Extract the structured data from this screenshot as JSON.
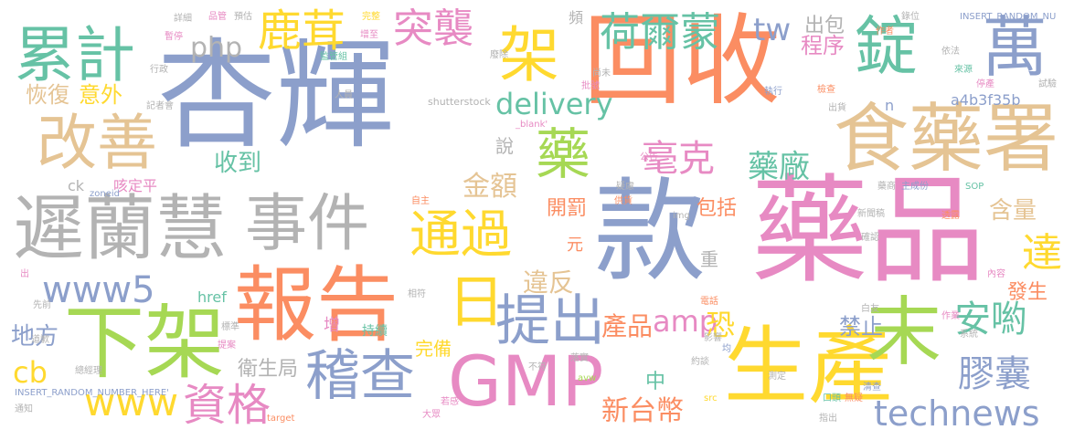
{
  "words": {
    "xinghui": "杏輝",
    "huishou": "回收",
    "kuan": "款",
    "yaopin": "藥品",
    "baogao": "報告",
    "gmp": "GMP",
    "shengchan": "生產",
    "xiajia": "下架",
    "chilanhui": "遲蘭慧",
    "shijian": "事件",
    "shiyaoshu": "食藥署",
    "leiji": "累計",
    "gaishan": "改善",
    "jia": "架",
    "ding": "錠",
    "wan": "萬",
    "mo": "末",
    "lurong": "鹿茸",
    "tuxi": "突襲",
    "heermeng": "荷爾蒙",
    "tongguo": "通過",
    "yao": "藥",
    "ri": "日",
    "tichu": "提出",
    "jicha": "稽查",
    "zige": "資格",
    "www5": "www5",
    "www": "www",
    "technews": "technews",
    "delivery": "delivery",
    "php": "php",
    "tw": "tw",
    "amp": "amp",
    "cb": "cb",
    "haoke": "毫克",
    "yaochang": "藥廠",
    "anwang": "安喲",
    "jiaonang": "膠囊",
    "da": "達",
    "fasheng": "發生",
    "hanliang": "含量",
    "jine": "金額",
    "shoudao": "收到",
    "yiwai": "意外",
    "huifu": "恢復",
    "weifan": "違反",
    "kaifa": "開罰",
    "kong": "恐",
    "chanpin": "產品",
    "jinzhi": "禁止",
    "weishengju": "衛生局",
    "xintaibi": "新台幣",
    "zhong": "中",
    "difang": "地方",
    "chubao": "出包",
    "chengxu": "程序",
    "shuo": "說",
    "yuan": "元",
    "baokuo": "包括",
    "zhong2": "重",
    "wanbei": "完備",
    "zeng": "增",
    "chixu": "持續",
    "hexi": "咳定平",
    "href": "href",
    "ck": "ck",
    "a4b": "a4b3f35b",
    "n": "n",
    "shutterstock": "shutterstock",
    "blank": "_blank'",
    "zoneid": "zoneid",
    "img": "img",
    "target": "target",
    "src": "src",
    "sop": "SOP",
    "avw": "avw",
    "insert1": "INSERT_RANDOM_NU",
    "insert2": "INSERT_RANDOM_NUMBER_HERE'",
    "pin": "頻",
    "renyuan": "人員",
    "jizhehui": "記者會",
    "jianguanzu": "監管組",
    "xiangxi": "詳細",
    "yugu": "預估",
    "zanting": "暫停",
    "xingzheng": "行政",
    "pinguan": "品管",
    "wanzheng": "完整",
    "zengzhi": "增至",
    "feichu": "廢除",
    "picihao": "批號",
    "shangwei": "尚未",
    "zhixing": "執行",
    "laiyuan": "來源",
    "tingchan": "停產",
    "jiancha": "檢查",
    "ceshi": "試驗",
    "chuhuo": "出貨",
    "yifa": "依法",
    "zuozhe": "作者",
    "luwei": "錄位",
    "gonggao": "公告",
    "yiyu": "疑慮",
    "zhuchengfen": "主成份",
    "xinwengao": "新聞稿",
    "queren": "確認",
    "touxu": "透露",
    "neirong": "內容",
    "yaoshang": "藥商",
    "gongying": "供貨",
    "zizhu": "自主",
    "dianhua": "電話",
    "baiyou": "白友",
    "zuoye": "作業",
    "xitong": "系統",
    "yingxiang": "影響",
    "jun": "均",
    "luoshi": "落實",
    "yuemian": "約談",
    "ceding": "測定",
    "qinglian": "清查",
    "wuji": "無疑",
    "zhichu": "指出",
    "koufu": "口頭",
    "biaozhun": "標準",
    "xianqian": "先前",
    "daoqian": "道歉",
    "zongjingli": "總經理",
    "tongzhi": "通知",
    "tiaoquan": "提案",
    "ruosheng": "若感",
    "dayi": "大眾",
    "buzhi": "不符",
    "xiangfu": "相符",
    "chu": "出"
  }
}
